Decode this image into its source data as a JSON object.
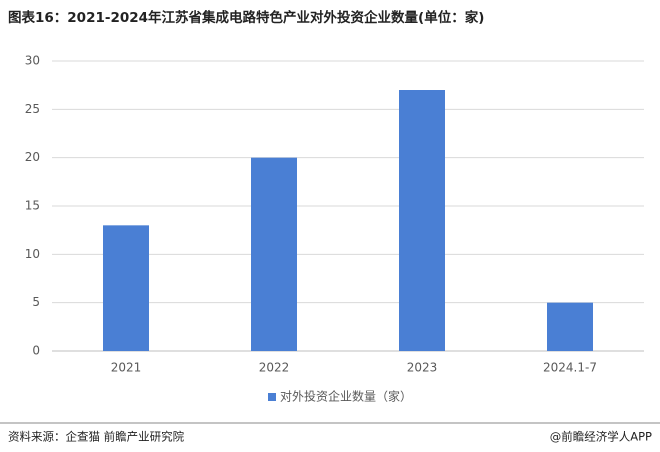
{
  "chart_data": {
    "type": "bar",
    "title": "图表16：2021-2024年江苏省集成电路特色产业对外投资企业数量(单位：家)",
    "categories": [
      "2021",
      "2022",
      "2023",
      "2024.1-7"
    ],
    "series": [
      {
        "name": "对外投资企业数量（家）",
        "color": "#4a7fd4",
        "values": [
          13,
          20,
          27,
          5
        ]
      }
    ],
    "ylim": [
      0,
      30
    ],
    "yticks": [
      0,
      5,
      10,
      15,
      20,
      25,
      30
    ],
    "grid": true,
    "legend": "bottom",
    "source": "资料来源：企查猫 前瞻产业研究院",
    "credit": "@前瞻经济学人APP"
  }
}
